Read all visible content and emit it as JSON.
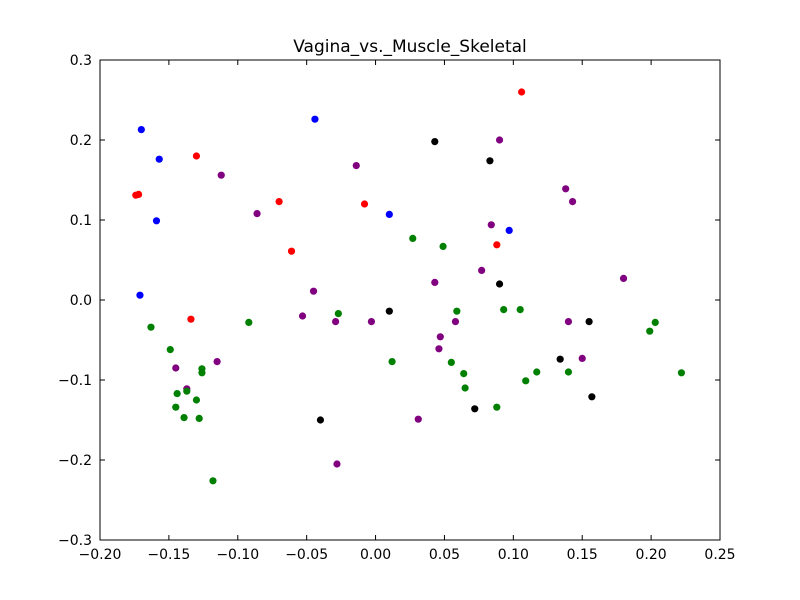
{
  "chart_data": {
    "type": "scatter",
    "title": "Vagina_vs._Muscle_Skeletal",
    "xlabel": "",
    "ylabel": "",
    "xlim": [
      -0.2,
      0.25
    ],
    "ylim": [
      -0.3,
      0.3
    ],
    "x_ticks": [
      "−0.20",
      "−0.15",
      "−0.10",
      "−0.05",
      "0.00",
      "0.05",
      "0.10",
      "0.15",
      "0.20",
      "0.25"
    ],
    "x_tick_values": [
      -0.2,
      -0.15,
      -0.1,
      -0.05,
      0.0,
      0.05,
      0.1,
      0.15,
      0.2,
      0.25
    ],
    "y_ticks": [
      "−0.3",
      "−0.2",
      "−0.1",
      "0.0",
      "0.1",
      "0.2",
      "0.3"
    ],
    "y_tick_values": [
      -0.3,
      -0.2,
      -0.1,
      0.0,
      0.1,
      0.2,
      0.3
    ],
    "grid": false,
    "legend": "none",
    "series": [
      {
        "color": "#0000ff",
        "points": [
          [
            -0.17,
            0.213
          ],
          [
            -0.157,
            0.176
          ],
          [
            -0.159,
            0.099
          ],
          [
            -0.171,
            0.006
          ],
          [
            -0.044,
            0.226
          ],
          [
            0.01,
            0.107
          ],
          [
            0.097,
            0.087
          ]
        ]
      },
      {
        "color": "#ff0000",
        "points": [
          [
            -0.174,
            0.131
          ],
          [
            -0.172,
            0.132
          ],
          [
            -0.13,
            0.18
          ],
          [
            -0.07,
            0.123
          ],
          [
            -0.061,
            0.061
          ],
          [
            -0.008,
            0.12
          ],
          [
            -0.134,
            -0.024
          ],
          [
            0.106,
            0.26
          ],
          [
            0.088,
            0.069
          ]
        ]
      },
      {
        "color": "#800080",
        "points": [
          [
            -0.112,
            0.156
          ],
          [
            -0.086,
            0.108
          ],
          [
            -0.014,
            0.168
          ],
          [
            0.09,
            0.2
          ],
          [
            0.138,
            0.139
          ],
          [
            0.143,
            0.123
          ],
          [
            0.084,
            0.094
          ],
          [
            0.077,
            0.037
          ],
          [
            0.043,
            0.022
          ],
          [
            0.18,
            0.027
          ],
          [
            -0.045,
            0.011
          ],
          [
            -0.053,
            -0.02
          ],
          [
            -0.029,
            -0.027
          ],
          [
            -0.003,
            -0.027
          ],
          [
            0.058,
            -0.027
          ],
          [
            0.14,
            -0.027
          ],
          [
            0.047,
            -0.046
          ],
          [
            0.046,
            -0.061
          ],
          [
            0.15,
            -0.073
          ],
          [
            -0.145,
            -0.085
          ],
          [
            -0.137,
            -0.111
          ],
          [
            -0.115,
            -0.077
          ],
          [
            0.031,
            -0.149
          ],
          [
            -0.028,
            -0.205
          ]
        ]
      },
      {
        "color": "#000000",
        "points": [
          [
            0.043,
            0.198
          ],
          [
            0.083,
            0.174
          ],
          [
            0.09,
            0.02
          ],
          [
            0.01,
            -0.014
          ],
          [
            0.155,
            -0.027
          ],
          [
            0.134,
            -0.074
          ],
          [
            0.157,
            -0.121
          ],
          [
            0.072,
            -0.136
          ],
          [
            -0.04,
            -0.15
          ]
        ]
      },
      {
        "color": "#008000",
        "points": [
          [
            0.027,
            0.077
          ],
          [
            0.049,
            0.067
          ],
          [
            -0.027,
            -0.017
          ],
          [
            -0.092,
            -0.028
          ],
          [
            -0.163,
            -0.034
          ],
          [
            0.059,
            -0.014
          ],
          [
            0.093,
            -0.012
          ],
          [
            0.105,
            -0.012
          ],
          [
            0.203,
            -0.028
          ],
          [
            0.199,
            -0.039
          ],
          [
            -0.149,
            -0.062
          ],
          [
            0.012,
            -0.077
          ],
          [
            0.055,
            -0.078
          ],
          [
            0.064,
            -0.092
          ],
          [
            0.117,
            -0.09
          ],
          [
            0.14,
            -0.09
          ],
          [
            0.222,
            -0.091
          ],
          [
            0.109,
            -0.101
          ],
          [
            0.065,
            -0.11
          ],
          [
            -0.126,
            -0.086
          ],
          [
            -0.126,
            -0.091
          ],
          [
            -0.144,
            -0.117
          ],
          [
            -0.137,
            -0.114
          ],
          [
            -0.13,
            -0.125
          ],
          [
            -0.145,
            -0.134
          ],
          [
            -0.139,
            -0.147
          ],
          [
            -0.128,
            -0.148
          ],
          [
            0.088,
            -0.134
          ],
          [
            -0.118,
            -0.226
          ]
        ]
      }
    ]
  }
}
